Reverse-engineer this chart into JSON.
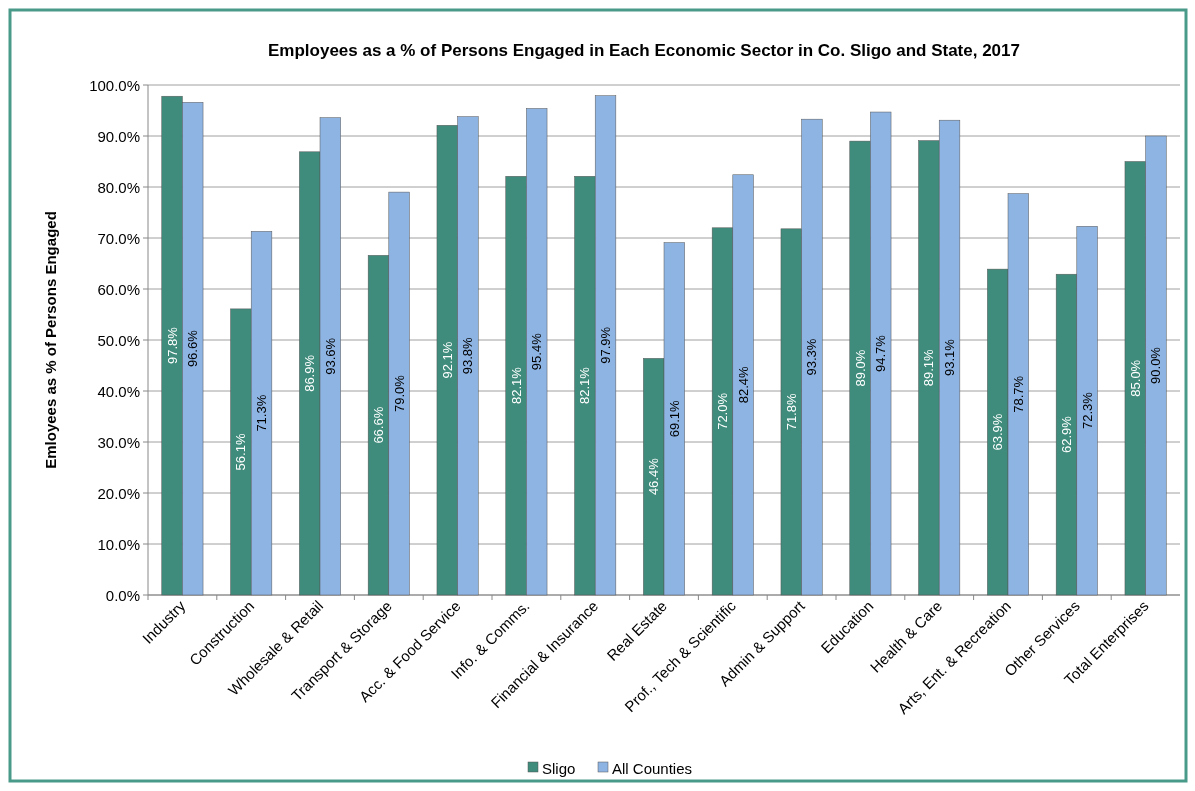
{
  "chart_data": {
    "type": "bar",
    "title": "Employees as a % of Persons Engaged in Each Economic Sector in Co. Sligo and State, 2017",
    "ylabel": "Emloyees as % of Persons Engaged",
    "categories": [
      "Industry",
      "Construction",
      "Wholesale & Retail",
      "Transport & Storage",
      "Acc. & Food Service",
      "Info. & Comms.",
      "Financial & Insurance",
      "Real Estate",
      "Prof., Tech & Scientific",
      "Admin & Support",
      "Education",
      "Health & Care",
      "Arts, Ent. & Recreation",
      "Other Services",
      "Total Enterprises"
    ],
    "series": [
      {
        "name": "Sligo",
        "color": "#3f8c7c",
        "values": [
          97.8,
          56.1,
          86.9,
          66.6,
          92.1,
          82.1,
          82.1,
          46.4,
          72.0,
          71.8,
          89.0,
          89.1,
          63.9,
          62.9,
          85.0
        ],
        "value_labels": [
          "97.8%",
          "56.1%",
          "86.9%",
          "66.6%",
          "92.1%",
          "82.1%",
          "82.1%",
          "46.4%",
          "72.0%",
          "71.8%",
          "89.0%",
          "89.1%",
          "63.9%",
          "62.9%",
          "85.0%"
        ]
      },
      {
        "name": "All Counties",
        "color": "#8eb4e3",
        "values": [
          96.6,
          71.3,
          93.6,
          79.0,
          93.8,
          95.4,
          97.9,
          69.1,
          82.4,
          93.3,
          94.7,
          93.1,
          78.7,
          72.3,
          90.0
        ],
        "value_labels": [
          "96.6%",
          "71.3%",
          "93.6%",
          "79.0%",
          "93.8%",
          "95.4%",
          "97.9%",
          "69.1%",
          "82.4%",
          "93.3%",
          "94.7%",
          "93.1%",
          "78.7%",
          "72.3%",
          "90.0%"
        ]
      }
    ],
    "ylim": [
      0,
      100
    ],
    "yticks": [
      {
        "value": 0,
        "label": "0.0%"
      },
      {
        "value": 10,
        "label": "10.0%"
      },
      {
        "value": 20,
        "label": "20.0%"
      },
      {
        "value": 30,
        "label": "30.0%"
      },
      {
        "value": 40,
        "label": "40.0%"
      },
      {
        "value": 50,
        "label": "50.0%"
      },
      {
        "value": 60,
        "label": "60.0%"
      },
      {
        "value": 70,
        "label": "70.0%"
      },
      {
        "value": 80,
        "label": "80.0%"
      },
      {
        "value": 90,
        "label": "90.0%"
      },
      {
        "value": 100,
        "label": "100.0%"
      }
    ],
    "grid": "y",
    "legend": "bottom"
  }
}
